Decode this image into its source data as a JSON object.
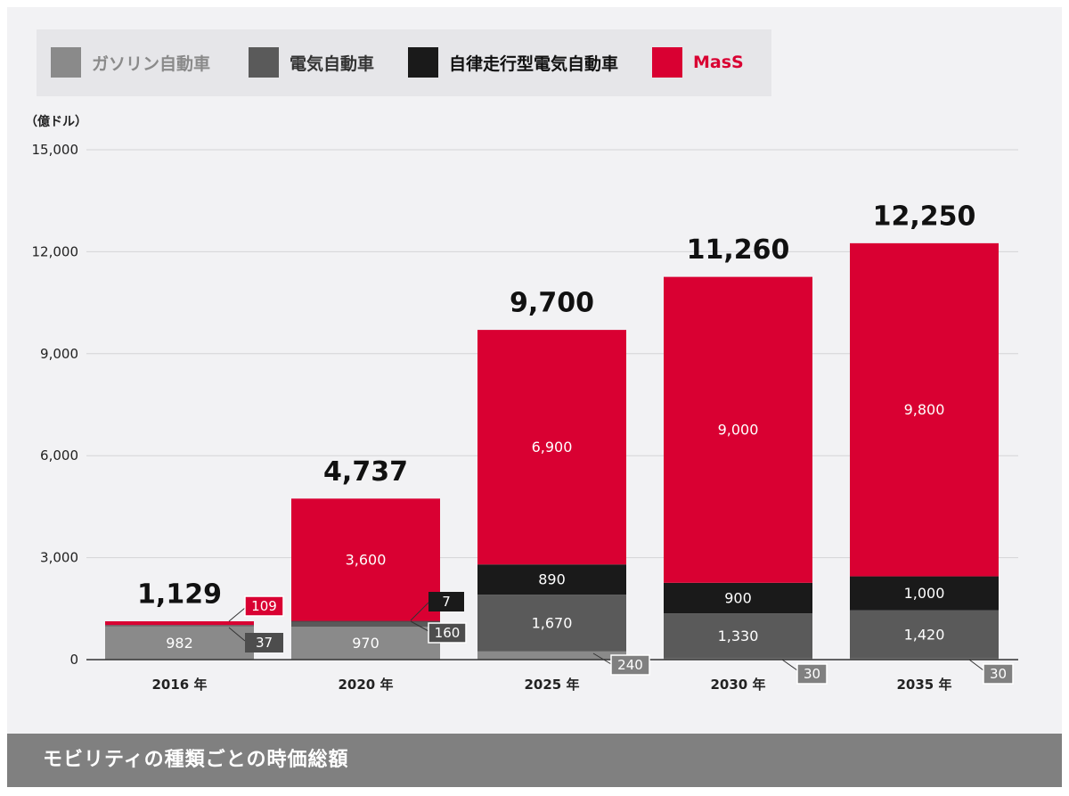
{
  "legend": [
    {
      "label": "ガソリン自動車",
      "color": "#8a8a8a",
      "text_color": "#8a8a8a"
    },
    {
      "label": "電気自動車",
      "color": "#5a5a5a",
      "text_color": "#333333"
    },
    {
      "label": "自律走行型電気自動車",
      "color": "#1a1a1a",
      "text_color": "#111111"
    },
    {
      "label": "MasS",
      "color": "#d90032",
      "text_color": "#d90032"
    }
  ],
  "unit_label": "（億ドル）",
  "footer": {
    "title": "モビリティの種類ごとの時価総額"
  },
  "chart_data": {
    "type": "bar",
    "stacked": true,
    "categories": [
      "2016 年",
      "2020 年",
      "2025 年",
      "2030 年",
      "2035 年"
    ],
    "series": [
      {
        "name": "ガソリン自動車",
        "color": "#8a8a8a",
        "values": [
          982,
          970,
          240,
          30,
          30
        ],
        "labels": [
          "982",
          "970",
          "240",
          "30",
          "30"
        ]
      },
      {
        "name": "電気自動車",
        "color": "#5a5a5a",
        "values": [
          37,
          160,
          1670,
          1330,
          1420
        ],
        "labels": [
          "37",
          "160",
          "1,670",
          "1,330",
          "1,420"
        ]
      },
      {
        "name": "自律走行型電気自動車",
        "color": "#1a1a1a",
        "values": [
          0,
          7,
          890,
          900,
          1000
        ],
        "labels": [
          "",
          "7",
          "890",
          "900",
          "1,000"
        ]
      },
      {
        "name": "MasS",
        "color": "#d90032",
        "values": [
          109,
          3600,
          6900,
          9000,
          9800
        ],
        "labels": [
          "109",
          "3,600",
          "6,900",
          "9,000",
          "9,800"
        ]
      }
    ],
    "totals": [
      "1,129",
      "4,737",
      "9,700",
      "11,260",
      "12,250"
    ],
    "ylim": [
      0,
      15000
    ],
    "yticks": [
      0,
      3000,
      6000,
      9000,
      12000,
      15000
    ],
    "ytick_labels": [
      "0",
      "3,000",
      "6,000",
      "9,000",
      "12,000",
      "15,000"
    ],
    "grid": true,
    "legend_position": "top-left"
  }
}
